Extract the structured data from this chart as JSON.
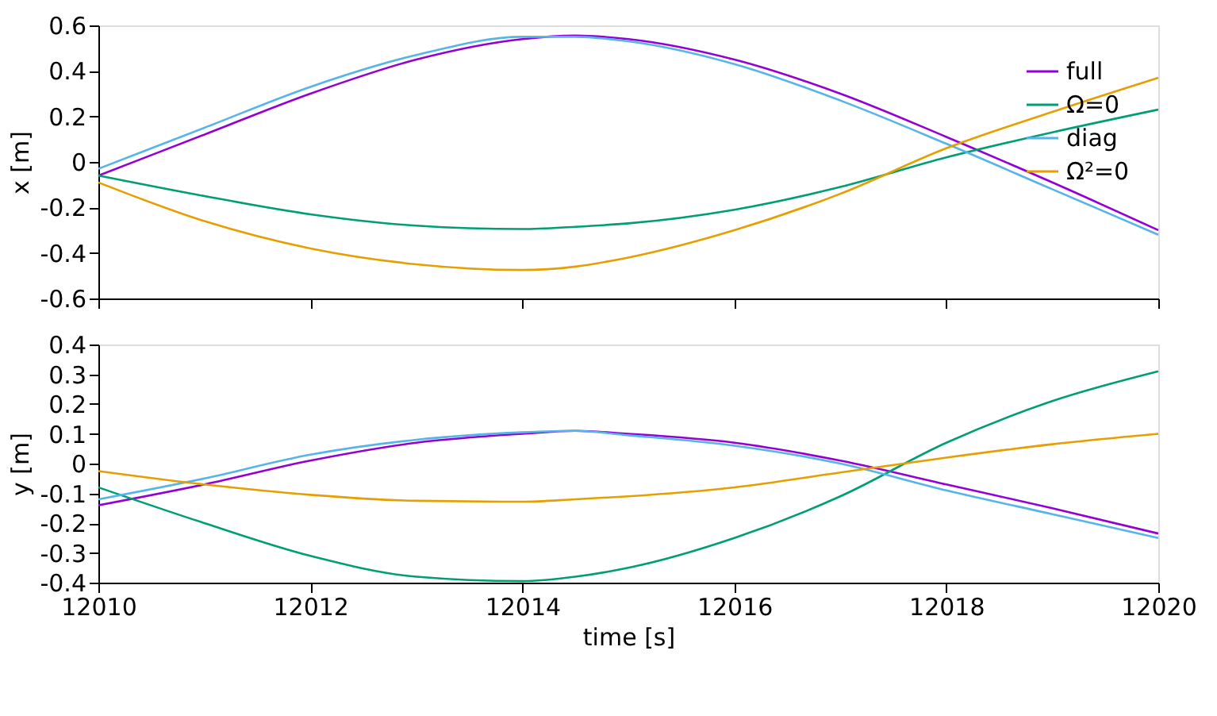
{
  "chart_data": [
    {
      "type": "line",
      "ylabel": "x [m]",
      "xlim": [
        12010,
        12020
      ],
      "xticks": [
        12010,
        12012,
        12014,
        12016,
        12018,
        12020
      ],
      "ylim": [
        -0.6,
        0.6
      ],
      "yticks": [
        -0.6,
        -0.4,
        -0.2,
        0,
        0.2,
        0.4,
        0.6
      ],
      "tick_labels": "y",
      "grid": false,
      "legend": "top right",
      "marker": "none",
      "line_style": "solid",
      "x": [
        12010,
        12011,
        12012,
        12013,
        12014,
        12014.5,
        12015,
        12016,
        12017,
        12018,
        12019,
        12020
      ],
      "series": [
        {
          "name": "full",
          "color": "#9400d3",
          "values": [
            -0.06,
            0.12,
            0.3,
            0.45,
            0.54,
            0.555,
            0.54,
            0.45,
            0.3,
            0.11,
            -0.09,
            -0.3
          ]
        },
        {
          "name": "Ω=0",
          "color": "#009e73",
          "values": [
            -0.06,
            -0.15,
            -0.23,
            -0.28,
            -0.295,
            -0.285,
            -0.27,
            -0.21,
            -0.11,
            0.02,
            0.13,
            0.23
          ]
        },
        {
          "name": "diag",
          "color": "#56b4e9",
          "values": [
            -0.03,
            0.15,
            0.33,
            0.47,
            0.55,
            0.55,
            0.53,
            0.43,
            0.27,
            0.08,
            -0.12,
            -0.32
          ]
        },
        {
          "name": "Ω²=0",
          "color": "#e69f00",
          "values": [
            -0.09,
            -0.26,
            -0.38,
            -0.45,
            -0.475,
            -0.46,
            -0.42,
            -0.3,
            -0.14,
            0.06,
            0.22,
            0.37
          ]
        }
      ]
    },
    {
      "type": "line",
      "xlabel": "time [s]",
      "ylabel": "y [m]",
      "xlim": [
        12010,
        12020
      ],
      "xticks": [
        12010,
        12012,
        12014,
        12016,
        12018,
        12020
      ],
      "ylim": [
        -0.4,
        0.4
      ],
      "yticks": [
        -0.4,
        -0.3,
        -0.2,
        -0.1,
        0,
        0.1,
        0.2,
        0.3,
        0.4
      ],
      "grid": false,
      "legend": "top right",
      "marker": "none",
      "line_style": "solid",
      "x": [
        12010,
        12011,
        12012,
        12013,
        12014,
        12014.5,
        12015,
        12016,
        12017,
        12018,
        12019,
        12020
      ],
      "series": [
        {
          "name": "full",
          "color": "#9400d3",
          "values": [
            -0.14,
            -0.07,
            0.01,
            0.07,
            0.1,
            0.11,
            0.1,
            0.07,
            0.01,
            -0.07,
            -0.15,
            -0.235
          ]
        },
        {
          "name": "Ω=0",
          "color": "#009e73",
          "values": [
            -0.08,
            -0.2,
            -0.31,
            -0.38,
            -0.395,
            -0.38,
            -0.35,
            -0.25,
            -0.11,
            0.07,
            0.21,
            0.31
          ]
        },
        {
          "name": "diag",
          "color": "#56b4e9",
          "values": [
            -0.12,
            -0.05,
            0.03,
            0.08,
            0.105,
            0.11,
            0.095,
            0.06,
            0.0,
            -0.09,
            -0.17,
            -0.25
          ]
        },
        {
          "name": "Ω²=0",
          "color": "#e69f00",
          "values": [
            -0.025,
            -0.07,
            -0.105,
            -0.125,
            -0.128,
            -0.12,
            -0.11,
            -0.08,
            -0.03,
            0.02,
            0.065,
            0.1
          ]
        }
      ]
    }
  ]
}
